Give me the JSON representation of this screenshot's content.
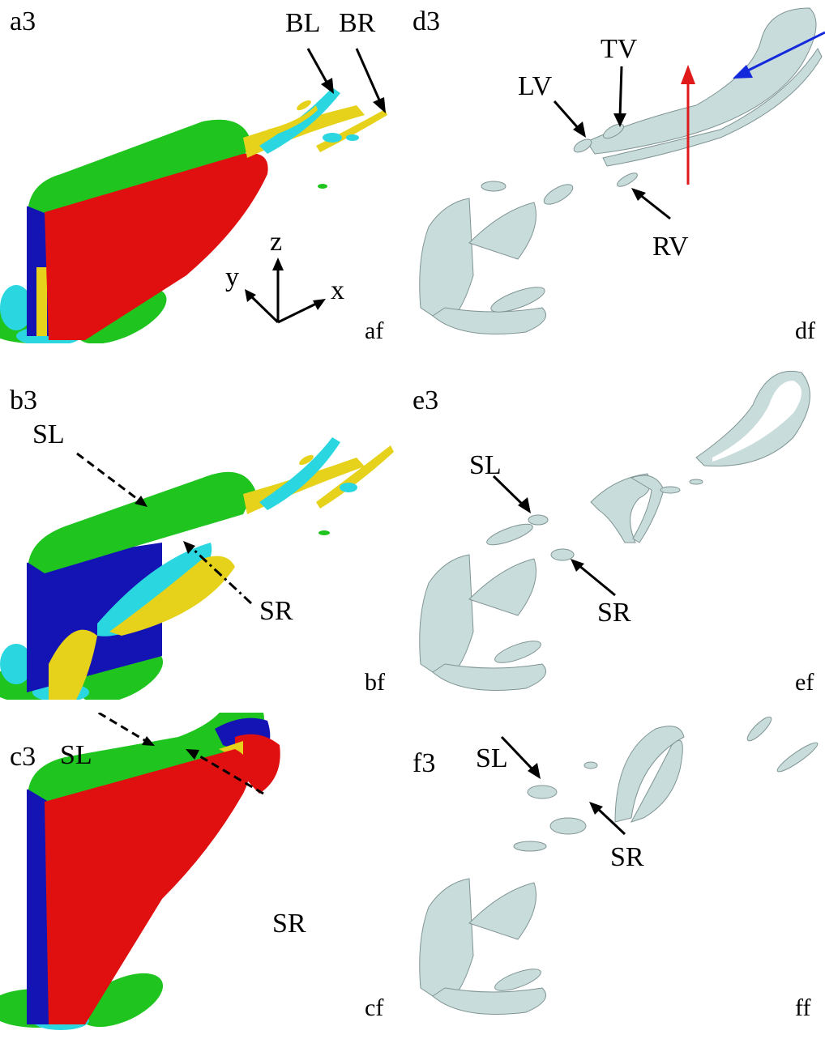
{
  "panels": {
    "a": {
      "tag": "a3",
      "corner": "af",
      "labels": {
        "bl": "BL",
        "br": "BR"
      },
      "axes": {
        "x": "x",
        "y": "y",
        "z": "z"
      }
    },
    "b": {
      "tag": "b3",
      "corner": "bf",
      "labels": {
        "sl": "SL",
        "sr": "SR"
      }
    },
    "c": {
      "tag": "c3",
      "corner": "cf",
      "labels": {
        "sl": "SL",
        "sr": "SR"
      }
    },
    "d": {
      "tag": "d3",
      "corner": "df",
      "labels": {
        "lv": "LV",
        "tv": "TV",
        "rv": "RV"
      }
    },
    "e": {
      "tag": "e3",
      "corner": "ef",
      "labels": {
        "sl": "SL",
        "sr": "SR"
      }
    },
    "f": {
      "tag": "f3",
      "corner": "ff",
      "labels": {
        "sl": "SL",
        "sr": "SR"
      }
    }
  },
  "colors": {
    "green": "#1fc41f",
    "red": "#e01010",
    "blue": "#1414b4",
    "cyan": "#2ad6e0",
    "yellow": "#e6d21a",
    "grey": "#c9dcdc",
    "grey_dark": "#7f9494",
    "arrow_red": "#e01a1a",
    "arrow_blue": "#1428dc"
  }
}
